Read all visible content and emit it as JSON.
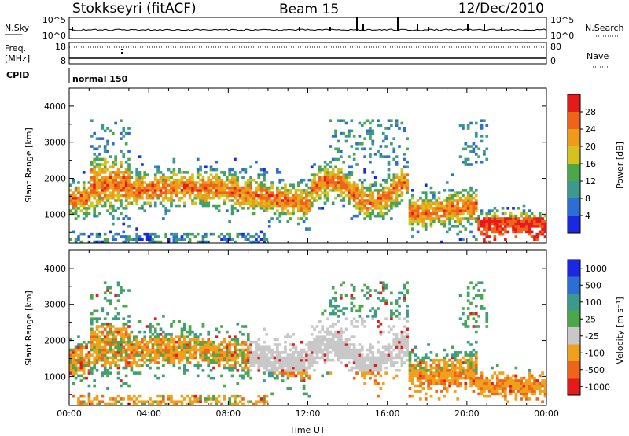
{
  "header": {
    "station": "Stokkseyri (fitACF)",
    "beam": "Beam 15",
    "date": "12/Dec/2010"
  },
  "panels": {
    "nsky": {
      "left_label": "N.Sky",
      "left_top": "10^5",
      "left_bottom": "10^0",
      "right_top": "10^5",
      "right_bottom": "10^0",
      "right_label": "N.Search"
    },
    "freq": {
      "left_label_1": "Freq.",
      "left_label_2": "[MHz]",
      "left_top": "18",
      "left_bottom": "8",
      "right_top": "80",
      "right_bottom": "0",
      "right_label": "Nave"
    },
    "cpid": {
      "left_label": "CPID",
      "mode_text": "normal 150"
    }
  },
  "chart_data": [
    {
      "type": "heatmap",
      "name": "power",
      "ylabel": "Slant Range [km]",
      "ylim": [
        200,
        4500
      ],
      "yticks": [
        1000,
        2000,
        3000,
        4000
      ],
      "xlim": [
        "00:00",
        "24:00"
      ],
      "colorbar_label": "Power [dB]",
      "colorbar_ticks": [
        "4",
        "8",
        "12",
        "16",
        "20",
        "24",
        "28"
      ],
      "colorbar_colors": [
        "#1a28e6",
        "#2b6fd6",
        "#3c9a8c",
        "#4aa84a",
        "#d4c21e",
        "#f09a1a",
        "#f0641a",
        "#e61a1a"
      ]
    },
    {
      "type": "heatmap",
      "name": "velocity",
      "ylabel": "Slant Range [km]",
      "ylim": [
        200,
        4500
      ],
      "yticks": [
        1000,
        2000,
        3000,
        4000
      ],
      "xlim": [
        "00:00",
        "24:00"
      ],
      "xlabel": "Time UT",
      "xticks": [
        "00:00",
        "04:00",
        "08:00",
        "12:00",
        "16:00",
        "20:00",
        "00:00"
      ],
      "colorbar_label": "Velocity [m s⁻¹]",
      "colorbar_ticks": [
        "1000",
        "500",
        "100",
        "25",
        "-25",
        "-100",
        "-500",
        "-1000"
      ],
      "colorbar_colors": [
        "#1a28e6",
        "#2b6fd6",
        "#3c9a8c",
        "#4aa84a",
        "#c8c8c8",
        "#f0a01a",
        "#f0641a",
        "#e61a1a"
      ]
    }
  ]
}
